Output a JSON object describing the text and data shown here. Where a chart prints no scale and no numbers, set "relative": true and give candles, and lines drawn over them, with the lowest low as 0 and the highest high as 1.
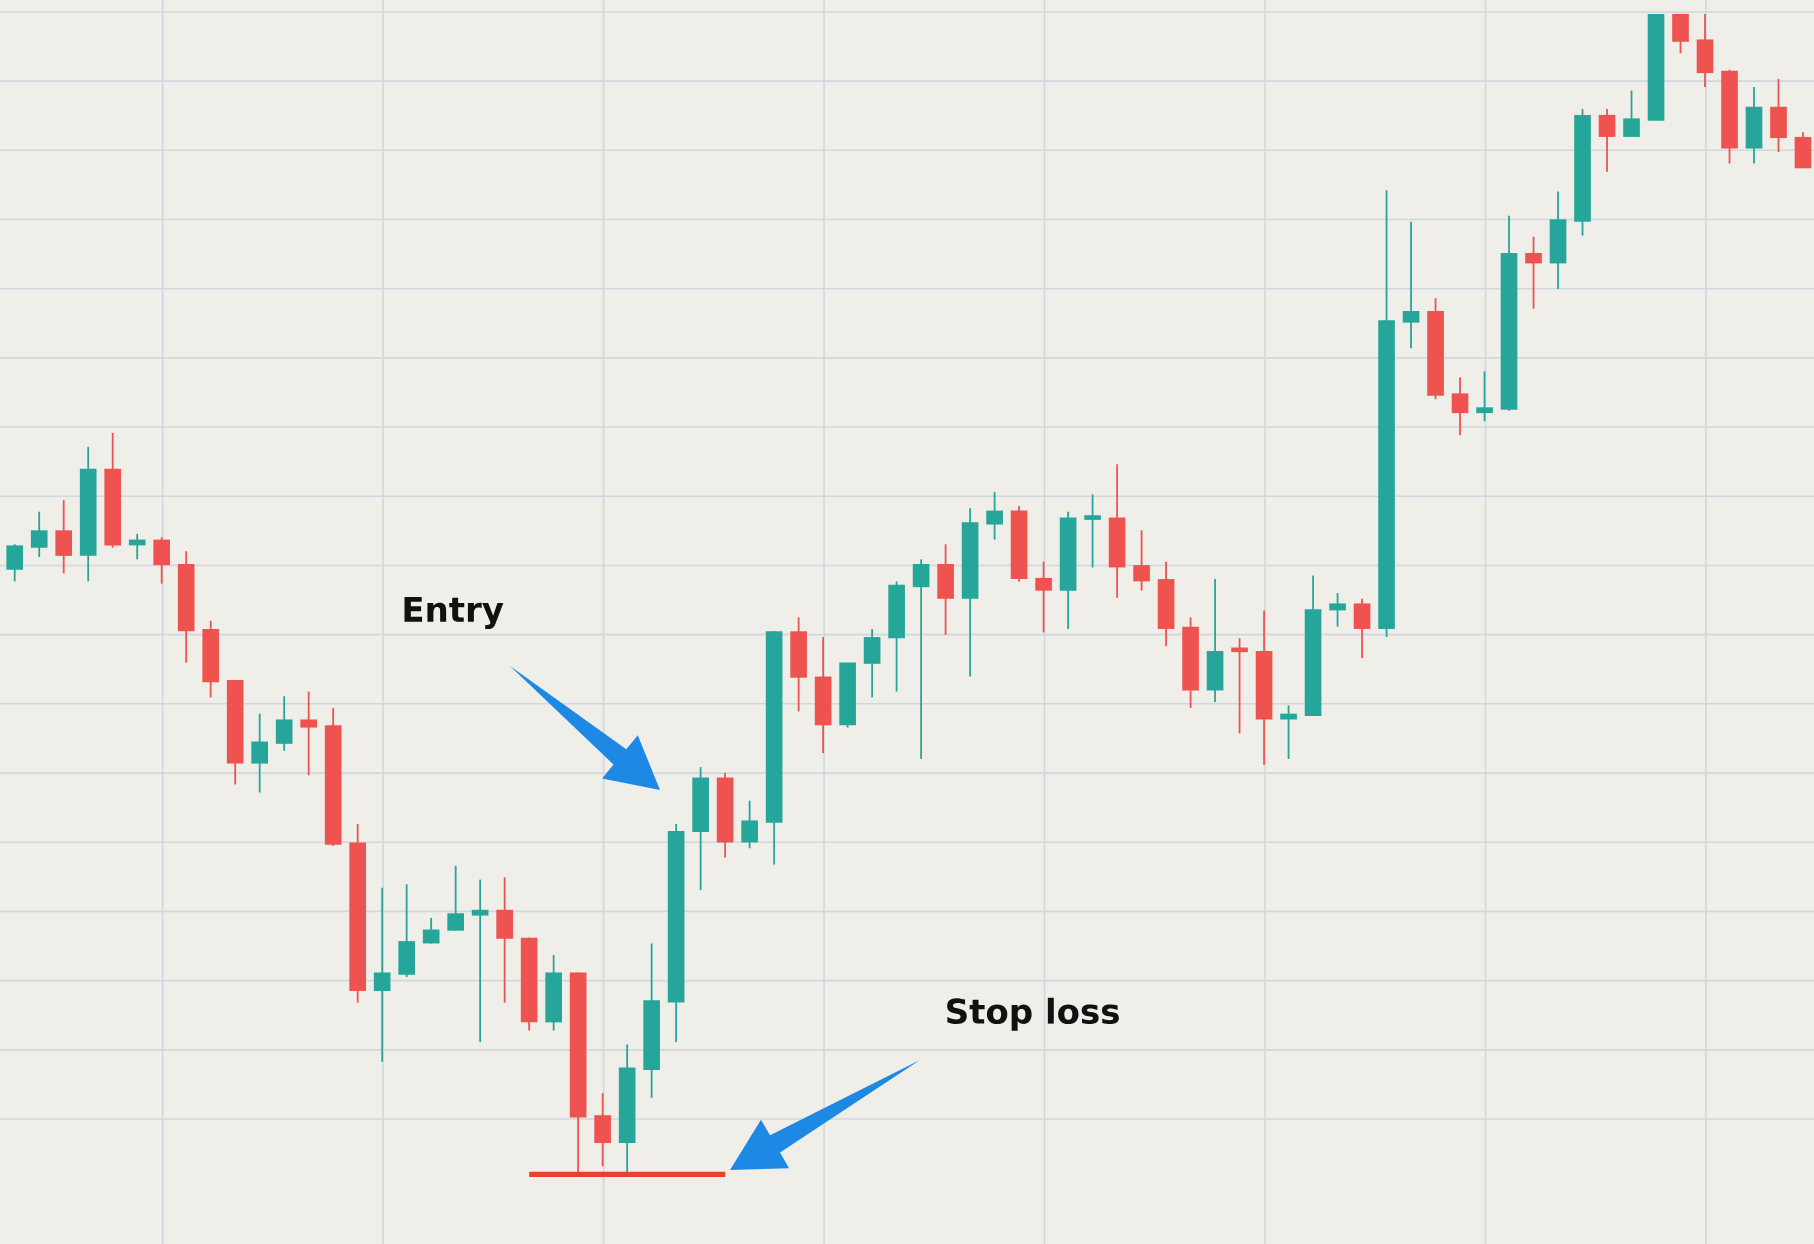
{
  "chart_data": {
    "type": "candlestick",
    "relative": true,
    "grid": true,
    "categories": [
      null,
      null,
      null,
      null,
      null,
      null,
      null,
      null,
      null,
      null,
      null,
      null,
      null,
      null,
      null,
      null,
      null,
      null,
      null,
      null,
      null,
      null,
      null,
      null,
      null,
      null,
      null,
      null,
      null,
      null,
      null,
      null,
      null,
      null,
      null,
      null,
      null,
      null,
      null,
      null,
      null,
      null,
      null,
      null,
      null,
      null,
      null,
      null,
      null,
      null,
      null,
      null,
      null,
      null,
      null,
      null,
      null,
      null,
      null,
      null,
      null,
      null,
      null,
      null,
      null,
      null,
      null,
      null,
      null,
      null,
      null,
      null,
      null,
      null
    ],
    "ohlc": [
      [
        0.521,
        0.543,
        0.511,
        0.542
      ],
      [
        0.54,
        0.571,
        0.532,
        0.555
      ],
      [
        0.555,
        0.581,
        0.518,
        0.533
      ],
      [
        0.533,
        0.627,
        0.511,
        0.608
      ],
      [
        0.608,
        0.639,
        0.54,
        0.542
      ],
      [
        0.542,
        0.552,
        0.53,
        0.547
      ],
      [
        0.547,
        0.549,
        0.509,
        0.525
      ],
      [
        0.526,
        0.537,
        0.441,
        0.468
      ],
      [
        0.47,
        0.477,
        0.411,
        0.424
      ],
      [
        0.426,
        0.426,
        0.336,
        0.354
      ],
      [
        0.354,
        0.397,
        0.329,
        0.373
      ],
      [
        0.371,
        0.412,
        0.365,
        0.392
      ],
      [
        0.392,
        0.416,
        0.344,
        0.385
      ],
      [
        0.387,
        0.402,
        0.283,
        0.284
      ],
      [
        0.286,
        0.302,
        0.148,
        0.158
      ],
      [
        0.158,
        0.247,
        0.097,
        0.174
      ],
      [
        0.172,
        0.25,
        0.17,
        0.201
      ],
      [
        0.199,
        0.221,
        0.199,
        0.211
      ],
      [
        0.21,
        0.266,
        0.21,
        0.225
      ],
      [
        0.223,
        0.254,
        0.114,
        0.228
      ],
      [
        0.228,
        0.256,
        0.148,
        0.203
      ],
      [
        0.204,
        0.204,
        0.124,
        0.131
      ],
      [
        0.131,
        0.189,
        0.124,
        0.174
      ],
      [
        0.174,
        0.174,
        0,
        0.049
      ],
      [
        0.051,
        0.07,
        0.007,
        0.027
      ],
      [
        0.027,
        0.112,
        0,
        0.092
      ],
      [
        0.09,
        0.199,
        0.066,
        0.15
      ],
      [
        0.148,
        0.302,
        0.114,
        0.296
      ],
      [
        0.295,
        0.351,
        0.245,
        0.342
      ],
      [
        0.342,
        0.346,
        0.273,
        0.286
      ],
      [
        0.286,
        0.322,
        0.281,
        0.305
      ],
      [
        0.303,
        0.468,
        0.267,
        0.468
      ],
      [
        0.468,
        0.48,
        0.399,
        0.428
      ],
      [
        0.429,
        0.463,
        0.363,
        0.387
      ],
      [
        0.387,
        0.441,
        0.385,
        0.441
      ],
      [
        0.44,
        0.47,
        0.411,
        0.463
      ],
      [
        0.462,
        0.511,
        0.416,
        0.508
      ],
      [
        0.506,
        0.53,
        0.358,
        0.526
      ],
      [
        0.526,
        0.543,
        0.465,
        0.496
      ],
      [
        0.496,
        0.574,
        0.429,
        0.562
      ],
      [
        0.56,
        0.588,
        0.547,
        0.572
      ],
      [
        0.572,
        0.576,
        0.511,
        0.513
      ],
      [
        0.514,
        0.528,
        0.467,
        0.503
      ],
      [
        0.503,
        0.571,
        0.47,
        0.566
      ],
      [
        0.564,
        0.586,
        0.523,
        0.566
      ],
      [
        0.566,
        0.612,
        0.497,
        0.523
      ],
      [
        0.525,
        0.555,
        0.503,
        0.511
      ],
      [
        0.513,
        0.528,
        0.455,
        0.47
      ],
      [
        0.472,
        0.48,
        0.402,
        0.417
      ],
      [
        0.417,
        0.513,
        0.407,
        0.451
      ],
      [
        0.451,
        0.462,
        0.38,
        0.45
      ],
      [
        0.451,
        0.486,
        0.353,
        0.392
      ],
      [
        0.392,
        0.404,
        0.358,
        0.397
      ],
      [
        0.395,
        0.516,
        0.395,
        0.487
      ],
      [
        0.486,
        0.501,
        0.472,
        0.492
      ],
      [
        0.492,
        0.496,
        0.445,
        0.47
      ],
      [
        0.47,
        0.848,
        0.463,
        0.736
      ],
      [
        0.734,
        0.821,
        0.712,
        0.744
      ],
      [
        0.744,
        0.755,
        0.668,
        0.671
      ],
      [
        0.673,
        0.687,
        0.637,
        0.656
      ],
      [
        0.656,
        0.692,
        0.649,
        0.661
      ],
      [
        0.659,
        0.826,
        0.658,
        0.794
      ],
      [
        0.794,
        0.808,
        0.746,
        0.785
      ],
      [
        0.785,
        0.847,
        0.763,
        0.823
      ],
      [
        0.821,
        0.918,
        0.809,
        0.913
      ],
      [
        0.913,
        0.918,
        0.864,
        0.894
      ],
      [
        0.894,
        0.934,
        0.894,
        0.91
      ],
      [
        0.908,
        1,
        0.908,
        1
      ],
      [
        1,
        1,
        0.966,
        0.976
      ],
      [
        0.978,
        1,
        0.937,
        0.949
      ],
      [
        0.951,
        0.952,
        0.871,
        0.884
      ],
      [
        0.884,
        0.937,
        0.871,
        0.92
      ],
      [
        0.92,
        0.944,
        0.881,
        0.893
      ],
      [
        0.894,
        0.898,
        0.867,
        0.867
      ]
    ],
    "colors": [
      "#26a69a",
      "#26a69a",
      "#ef5350",
      "#26a69a",
      "#ef5350",
      "#26a69a",
      "#ef5350",
      "#ef5350",
      "#ef5350",
      "#ef5350",
      "#26a69a",
      "#26a69a",
      "#ef5350",
      "#ef5350",
      "#ef5350",
      "#26a69a",
      "#26a69a",
      "#26a69a",
      "#26a69a",
      "#26a69a",
      "#ef5350",
      "#ef5350",
      "#26a69a",
      "#ef5350",
      "#ef5350",
      "#26a69a",
      "#26a69a",
      "#26a69a",
      "#26a69a",
      "#ef5350",
      "#26a69a",
      "#26a69a",
      "#ef5350",
      "#ef5350",
      "#26a69a",
      "#26a69a",
      "#26a69a",
      "#26a69a",
      "#ef5350",
      "#26a69a",
      "#26a69a",
      "#ef5350",
      "#ef5350",
      "#26a69a",
      "#26a69a",
      "#ef5350",
      "#ef5350",
      "#ef5350",
      "#ef5350",
      "#26a69a",
      "#ef5350",
      "#ef5350",
      "#26a69a",
      "#26a69a",
      "#26a69a",
      "#ef5350",
      "#26a69a",
      "#26a69a",
      "#ef5350",
      "#ef5350",
      "#26a69a",
      "#26a69a",
      "#ef5350",
      "#26a69a",
      "#26a69a",
      "#ef5350",
      "#26a69a",
      "#26a69a",
      "#ef5350",
      "#ef5350",
      "#ef5350",
      "#26a69a",
      "#ef5350",
      "#ef5350"
    ],
    "ref_lines": [
      {
        "axis": "y",
        "value": 0,
        "color": "#e8412f"
      }
    ],
    "annotations": [
      "Entry",
      "Stop loss"
    ]
  }
}
